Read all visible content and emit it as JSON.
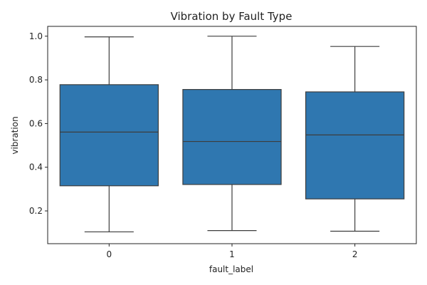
{
  "chart_data": {
    "type": "box",
    "title": "Vibration by Fault Type",
    "xlabel": "fault_label",
    "ylabel": "vibration",
    "ylim": [
      0.05,
      1.045
    ],
    "yticks": [
      0.2,
      0.4,
      0.6,
      0.8,
      1.0
    ],
    "ytick_labels": [
      "0.2",
      "0.4",
      "0.6",
      "0.8",
      "1.0"
    ],
    "categories": [
      "0",
      "1",
      "2"
    ],
    "box_color": "#2f77b0",
    "line_color": "#3d3d3d",
    "grid": false,
    "boxes": [
      {
        "category": "0",
        "whisker_low": 0.104,
        "q1": 0.315,
        "median": 0.561,
        "q3": 0.778,
        "whisker_high": 0.997
      },
      {
        "category": "1",
        "whisker_low": 0.11,
        "q1": 0.321,
        "median": 0.518,
        "q3": 0.756,
        "whisker_high": 1.0
      },
      {
        "category": "2",
        "whisker_low": 0.107,
        "q1": 0.255,
        "median": 0.548,
        "q3": 0.745,
        "whisker_high": 0.953
      }
    ]
  }
}
